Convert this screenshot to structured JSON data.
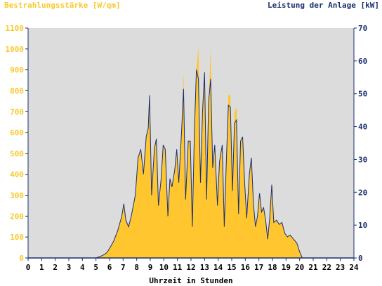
{
  "chart_data": {
    "type": "area",
    "left_title": "Bestrahlungsstärke [W/qm]",
    "right_title": "Leistung der Anlage [kW]",
    "xlabel": "Uhrzeit in Stunden",
    "xlim": [
      0,
      24
    ],
    "x_ticks": [
      0,
      1,
      2,
      3,
      4,
      5,
      6,
      7,
      8,
      9,
      10,
      11,
      12,
      13,
      14,
      15,
      16,
      17,
      18,
      19,
      20,
      21,
      22,
      23,
      24
    ],
    "ylim_left": [
      0,
      1100
    ],
    "y_ticks_left": [
      0,
      100,
      200,
      300,
      400,
      500,
      600,
      700,
      800,
      900,
      1000,
      1100
    ],
    "ylim_right": [
      0,
      70
    ],
    "y_ticks_right": [
      0,
      10,
      20,
      30,
      40,
      50,
      60,
      70
    ],
    "grid": false,
    "colors": {
      "irradiance": "#ffc62f",
      "power": "#1a2f6f",
      "plot_bg": "#dcdcdc",
      "axis": "#1a2f6f"
    },
    "series": [
      {
        "name": "Bestrahlungsstärke",
        "axis": "left",
        "x": [
          0,
          5,
          5.2,
          5.5,
          5.8,
          6.0,
          6.3,
          6.6,
          6.9,
          7.05,
          7.2,
          7.4,
          7.6,
          7.9,
          8.1,
          8.3,
          8.5,
          8.7,
          8.85,
          8.95,
          9.1,
          9.3,
          9.45,
          9.6,
          9.8,
          9.95,
          10.1,
          10.3,
          10.45,
          10.6,
          10.8,
          10.95,
          11.1,
          11.3,
          11.45,
          11.6,
          11.8,
          11.95,
          12.1,
          12.25,
          12.4,
          12.55,
          12.7,
          12.85,
          13.0,
          13.15,
          13.3,
          13.45,
          13.6,
          13.75,
          13.95,
          14.1,
          14.3,
          14.45,
          14.6,
          14.75,
          14.9,
          15.05,
          15.2,
          15.35,
          15.5,
          15.65,
          15.8,
          15.95,
          16.1,
          16.3,
          16.45,
          16.6,
          16.75,
          16.9,
          17.05,
          17.2,
          17.35,
          17.5,
          17.65,
          17.8,
          17.95,
          18.1,
          18.3,
          18.5,
          18.7,
          18.9,
          19.1,
          19.3,
          19.5,
          19.8,
          20.0,
          20.2,
          20.4,
          24
        ],
        "values": [
          0,
          0,
          5,
          12,
          25,
          45,
          80,
          130,
          200,
          260,
          180,
          150,
          200,
          300,
          480,
          520,
          400,
          580,
          620,
          800,
          300,
          520,
          570,
          250,
          380,
          540,
          520,
          200,
          380,
          340,
          420,
          520,
          360,
          600,
          890,
          280,
          560,
          560,
          150,
          600,
          900,
          1010,
          360,
          700,
          910,
          280,
          750,
          1000,
          430,
          540,
          250,
          460,
          540,
          150,
          460,
          780,
          780,
          320,
          700,
          720,
          210,
          560,
          580,
          360,
          190,
          400,
          480,
          260,
          150,
          200,
          310,
          220,
          240,
          180,
          90,
          190,
          350,
          170,
          180,
          160,
          170,
          120,
          100,
          110,
          95,
          70,
          30,
          0,
          0,
          0
        ]
      },
      {
        "name": "Leistung",
        "axis": "right",
        "x": [
          0,
          5,
          5.2,
          5.5,
          5.8,
          6.0,
          6.3,
          6.6,
          6.9,
          7.05,
          7.2,
          7.4,
          7.6,
          7.9,
          8.1,
          8.3,
          8.5,
          8.7,
          8.85,
          8.95,
          9.1,
          9.3,
          9.45,
          9.6,
          9.8,
          9.95,
          10.1,
          10.3,
          10.45,
          10.6,
          10.8,
          10.95,
          11.1,
          11.3,
          11.45,
          11.6,
          11.8,
          11.95,
          12.1,
          12.25,
          12.4,
          12.55,
          12.7,
          12.85,
          13.0,
          13.15,
          13.3,
          13.45,
          13.6,
          13.75,
          13.95,
          14.1,
          14.3,
          14.45,
          14.6,
          14.75,
          14.9,
          15.05,
          15.2,
          15.35,
          15.5,
          15.65,
          15.8,
          15.95,
          16.1,
          16.3,
          16.45,
          16.6,
          16.75,
          16.9,
          17.05,
          17.2,
          17.35,
          17.5,
          17.65,
          17.8,
          17.95,
          18.1,
          18.3,
          18.5,
          18.7,
          18.9,
          19.1,
          19.3,
          19.5,
          19.8,
          20.0,
          20.2,
          20.4,
          24
        ],
        "values": [
          0,
          0,
          0.3,
          0.8,
          1.6,
          2.9,
          5.1,
          8.3,
          12.7,
          16.5,
          11.5,
          9.5,
          12.7,
          19.1,
          30.5,
          33.1,
          25.5,
          36.9,
          39.5,
          49.5,
          19.1,
          33.1,
          36.3,
          15.9,
          24.2,
          34.4,
          33.1,
          12.7,
          24.2,
          21.6,
          26.7,
          33.1,
          22.9,
          38.2,
          51.5,
          17.8,
          35.6,
          35.6,
          9.5,
          38.2,
          57.3,
          54.5,
          22.9,
          44.5,
          56.5,
          17.8,
          47.7,
          54.5,
          27.4,
          34.4,
          15.9,
          29.3,
          34.4,
          9.5,
          29.3,
          46.5,
          46.0,
          20.4,
          41.0,
          42.0,
          13.4,
          35.6,
          36.9,
          22.9,
          12.1,
          25.5,
          30.5,
          16.5,
          9.5,
          12.7,
          19.7,
          14.0,
          15.3,
          11.5,
          5.7,
          12.1,
          22.3,
          10.8,
          11.5,
          10.2,
          10.8,
          7.6,
          6.4,
          7.0,
          6.0,
          4.5,
          1.9,
          0,
          0,
          0
        ]
      }
    ]
  }
}
